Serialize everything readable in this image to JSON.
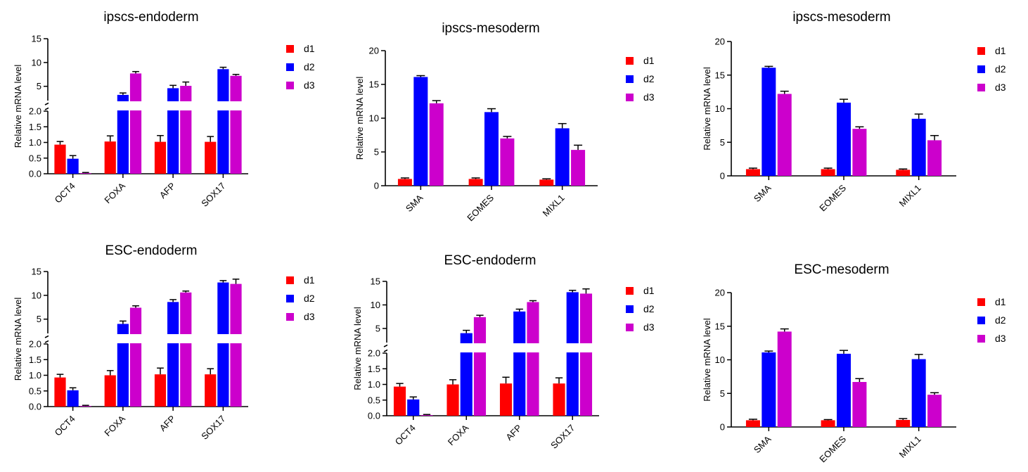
{
  "colors": {
    "d1": "#ff0000",
    "d2": "#0000ff",
    "d3": "#cc00cc"
  },
  "chart_data": [
    {
      "type": "bar",
      "title": "ipscs-endoderm",
      "ylabel": "Relative mRNA level",
      "categories": [
        "OCT4",
        "FOXA",
        "AFP",
        "SOX17"
      ],
      "broken_axis": true,
      "lower_range": [
        0,
        2
      ],
      "upper_range": [
        2,
        15
      ],
      "lower_ticks": [
        "0.0",
        "0.5",
        "1.0",
        "1.5",
        "2.0"
      ],
      "upper_ticks": [
        "5",
        "10",
        "15"
      ],
      "series": [
        {
          "name": "d1",
          "values": [
            0.93,
            1.03,
            1.02,
            1.02
          ],
          "errors": [
            0.1,
            0.18,
            0.2,
            0.17
          ]
        },
        {
          "name": "d2",
          "values": [
            0.48,
            3.2,
            4.6,
            8.6
          ],
          "errors": [
            0.1,
            0.4,
            0.6,
            0.4
          ]
        },
        {
          "name": "d3",
          "values": [
            0.02,
            7.7,
            5.1,
            7.2
          ],
          "errors": [
            0.02,
            0.4,
            0.8,
            0.3
          ]
        }
      ]
    },
    {
      "type": "bar",
      "title": "ipscs-mesoderm",
      "ylabel": "Relative mRNA level",
      "categories": [
        "SMA",
        "EOMES",
        "MIXL1"
      ],
      "broken_axis": false,
      "ylim": [
        0,
        20
      ],
      "ticks": [
        "0",
        "5",
        "10",
        "15",
        "20"
      ],
      "series": [
        {
          "name": "d1",
          "values": [
            1.0,
            1.0,
            0.9
          ],
          "errors": [
            0.15,
            0.15,
            0.12
          ]
        },
        {
          "name": "d2",
          "values": [
            16.1,
            10.9,
            8.5
          ],
          "errors": [
            0.2,
            0.5,
            0.7
          ]
        },
        {
          "name": "d3",
          "values": [
            12.2,
            7.0,
            5.3
          ],
          "errors": [
            0.4,
            0.3,
            0.7
          ]
        }
      ]
    },
    {
      "type": "bar",
      "title": "ipscs-mesoderm",
      "ylabel": "Relative mRNA level",
      "categories": [
        "SMA",
        "EOMES",
        "MIXL1"
      ],
      "broken_axis": false,
      "ylim": [
        0,
        20
      ],
      "ticks": [
        "0",
        "5",
        "10",
        "15",
        "20"
      ],
      "series": [
        {
          "name": "d1",
          "values": [
            1.0,
            1.0,
            0.9
          ],
          "errors": [
            0.15,
            0.15,
            0.12
          ]
        },
        {
          "name": "d2",
          "values": [
            16.1,
            10.9,
            8.5
          ],
          "errors": [
            0.2,
            0.5,
            0.7
          ]
        },
        {
          "name": "d3",
          "values": [
            12.2,
            7.0,
            5.3
          ],
          "errors": [
            0.4,
            0.3,
            0.7
          ]
        }
      ]
    },
    {
      "type": "bar",
      "title": "ESC-endoderm",
      "ylabel": "Relative mRNA level",
      "categories": [
        "OCT4",
        "FOXA",
        "AFP",
        "SOX17"
      ],
      "broken_axis": true,
      "lower_range": [
        0,
        2
      ],
      "upper_range": [
        2,
        15
      ],
      "lower_ticks": [
        "0.0",
        "0.5",
        "1.0",
        "1.5",
        "2.0"
      ],
      "upper_ticks": [
        "5",
        "10",
        "15"
      ],
      "series": [
        {
          "name": "d1",
          "values": [
            0.93,
            1.0,
            1.03,
            1.03
          ],
          "errors": [
            0.1,
            0.15,
            0.2,
            0.18
          ]
        },
        {
          "name": "d2",
          "values": [
            0.52,
            4.0,
            8.6,
            12.7
          ],
          "errors": [
            0.08,
            0.6,
            0.5,
            0.4
          ]
        },
        {
          "name": "d3",
          "values": [
            0.02,
            7.4,
            10.6,
            12.4
          ],
          "errors": [
            0.02,
            0.4,
            0.3,
            1.0
          ]
        }
      ]
    },
    {
      "type": "bar",
      "title": "ESC-endoderm",
      "ylabel": "Relative mRNA level",
      "categories": [
        "OCT4",
        "FOXA",
        "AFP",
        "SOX17"
      ],
      "broken_axis": true,
      "lower_range": [
        0,
        2
      ],
      "upper_range": [
        2,
        15
      ],
      "lower_ticks": [
        "0.0",
        "0.5",
        "1.0",
        "1.5",
        "2.0"
      ],
      "upper_ticks": [
        "5",
        "10",
        "15"
      ],
      "series": [
        {
          "name": "d1",
          "values": [
            0.93,
            1.0,
            1.03,
            1.03
          ],
          "errors": [
            0.1,
            0.15,
            0.2,
            0.18
          ]
        },
        {
          "name": "d2",
          "values": [
            0.52,
            4.0,
            8.6,
            12.7
          ],
          "errors": [
            0.08,
            0.6,
            0.5,
            0.4
          ]
        },
        {
          "name": "d3",
          "values": [
            0.02,
            7.4,
            10.6,
            12.4
          ],
          "errors": [
            0.02,
            0.4,
            0.3,
            1.0
          ]
        }
      ]
    },
    {
      "type": "bar",
      "title": "ESC-mesoderm",
      "ylabel": "Relative mRNA level",
      "categories": [
        "SMA",
        "EOMES",
        "MIXL1"
      ],
      "broken_axis": false,
      "ylim": [
        0,
        20
      ],
      "ticks": [
        "0",
        "5",
        "10",
        "15",
        "20"
      ],
      "series": [
        {
          "name": "d1",
          "values": [
            1.0,
            1.0,
            1.05
          ],
          "errors": [
            0.15,
            0.1,
            0.2
          ]
        },
        {
          "name": "d2",
          "values": [
            11.1,
            10.9,
            10.1
          ],
          "errors": [
            0.2,
            0.5,
            0.7
          ]
        },
        {
          "name": "d3",
          "values": [
            14.2,
            6.7,
            4.8
          ],
          "errors": [
            0.4,
            0.5,
            0.3
          ]
        }
      ]
    }
  ]
}
